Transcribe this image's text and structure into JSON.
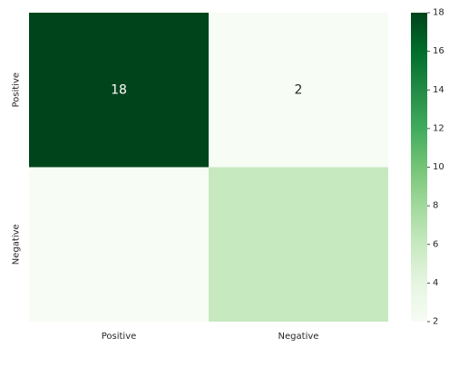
{
  "chart_data": {
    "type": "heatmap",
    "title": "",
    "xlabel": "",
    "ylabel": "",
    "x_categories": [
      "Positive",
      "Negative"
    ],
    "y_categories": [
      "Positive",
      "Negative"
    ],
    "values": [
      [
        18,
        2
      ],
      [
        0,
        6
      ]
    ],
    "annotations": [
      [
        "18",
        "2"
      ],
      [
        "",
        ""
      ]
    ],
    "colorbar": {
      "min": 2,
      "max": 18,
      "ticks": [
        "2",
        "4",
        "6",
        "8",
        "10",
        "12",
        "14",
        "16",
        "18"
      ],
      "colormap": "Greens",
      "stops": [
        "#f7fcf5",
        "#e5f5e0",
        "#c7e9c0",
        "#a1d99b",
        "#74c476",
        "#41ab5d",
        "#238b45",
        "#006d2c",
        "#00441b"
      ]
    },
    "grid": false,
    "legend": "none"
  }
}
